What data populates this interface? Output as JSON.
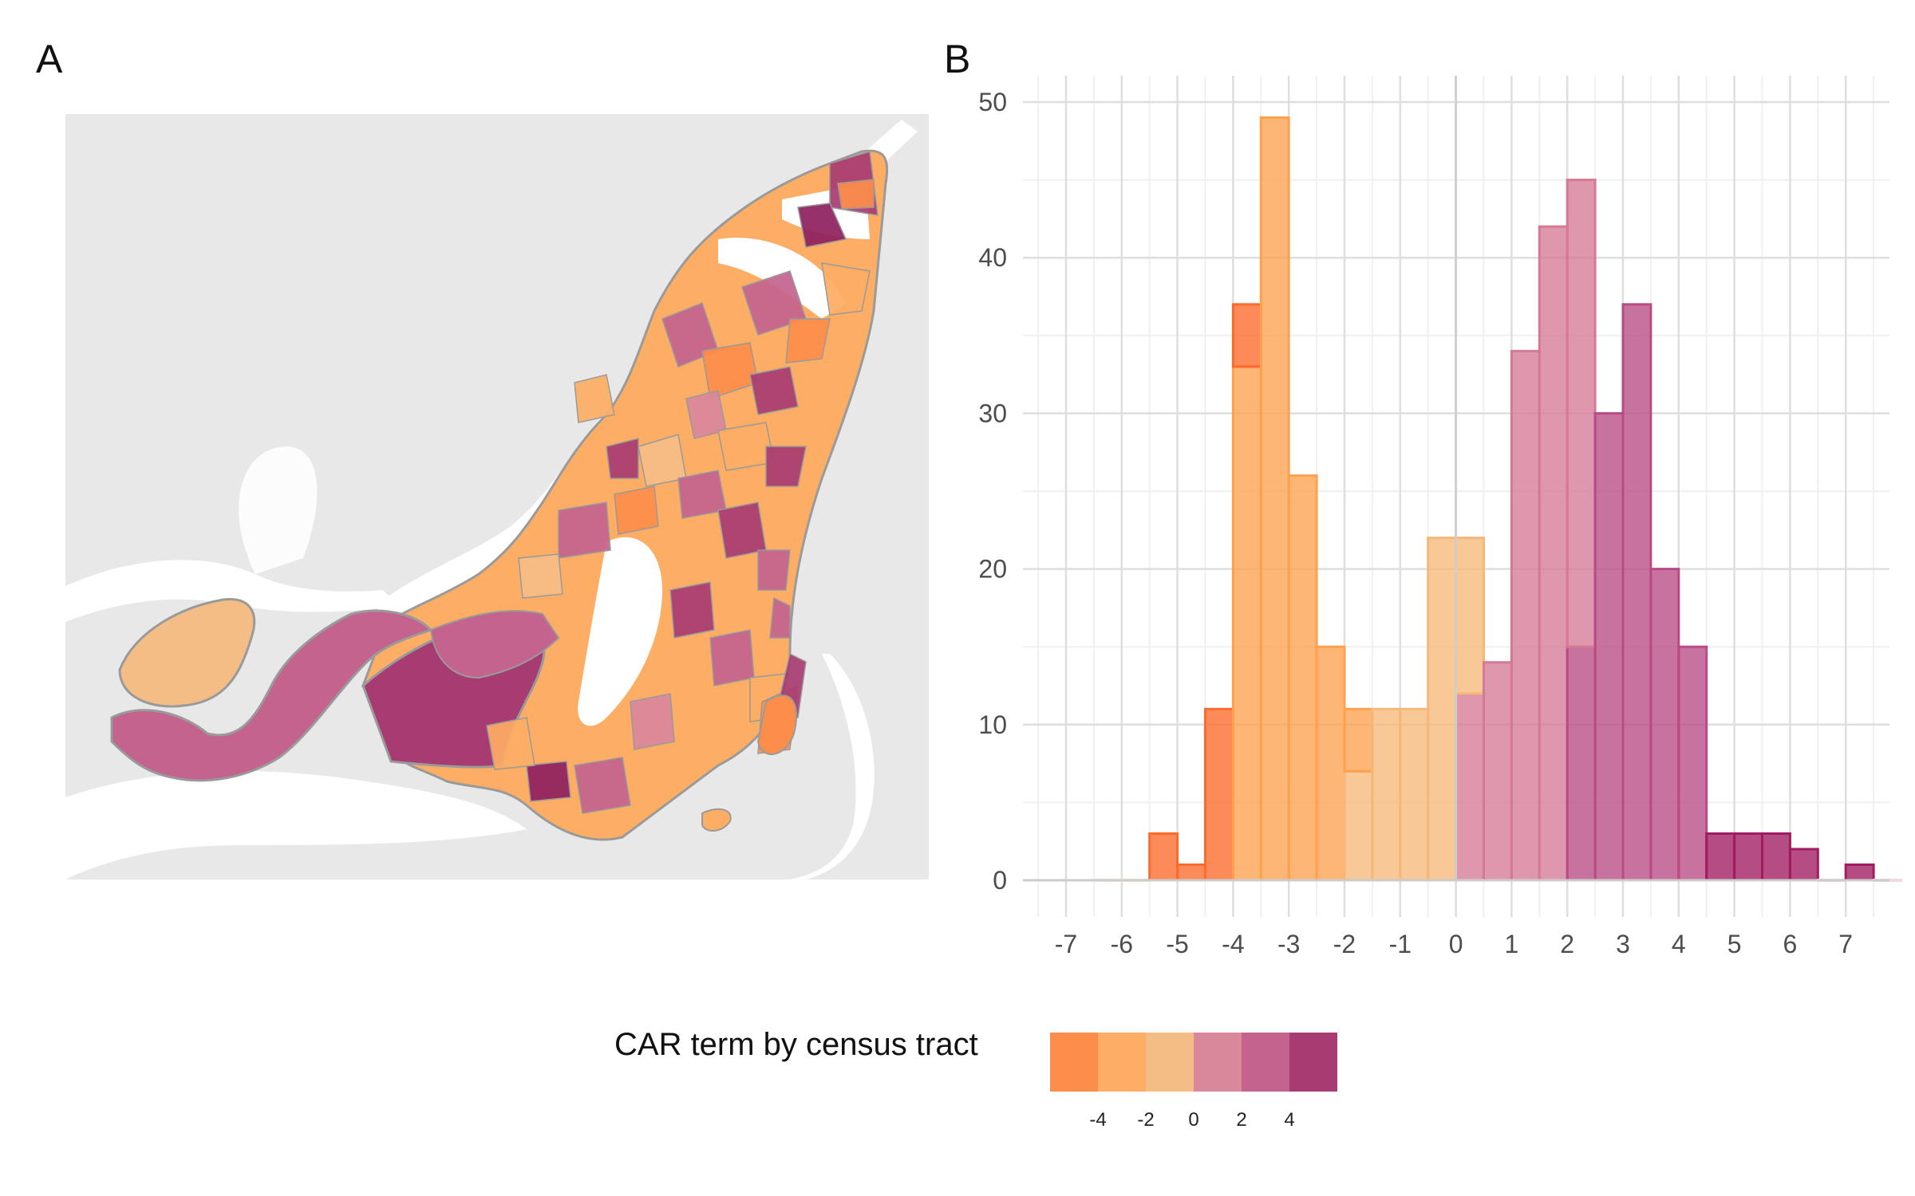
{
  "panels": {
    "a_label": "A",
    "b_label": "B"
  },
  "legend": {
    "title": "CAR term by census tract",
    "swatch_colors": [
      "#fd8d4a",
      "#fdad64",
      "#f5bd86",
      "#d9879b",
      "#c3638e",
      "#a73c72"
    ],
    "ticks": [
      "-4",
      "-2",
      "0",
      "2",
      "4"
    ]
  },
  "map": {
    "background": "#e8e8e8",
    "water": "#ffffff",
    "tract_palette": [
      "#fd8d4a",
      "#fdad64",
      "#f5bd86",
      "#d9879b",
      "#c3638e",
      "#a73c72",
      "#8e1f5f"
    ],
    "outline": "#9a9a9a"
  },
  "chart_data": {
    "type": "bar",
    "title": "",
    "xlabel": "",
    "ylabel": "",
    "xlim": [
      -7.5,
      7.5
    ],
    "ylim": [
      0,
      50
    ],
    "x_ticks": [
      -7,
      -6,
      -5,
      -4,
      -3,
      -2,
      -1,
      0,
      1,
      2,
      3,
      4,
      5,
      6,
      7
    ],
    "y_ticks": [
      0,
      10,
      20,
      30,
      40,
      50
    ],
    "bin_width": 0.5,
    "bins": [
      {
        "x": -6.25,
        "stack": [
          {
            "value": 0,
            "color": "#fee8d8"
          }
        ]
      },
      {
        "x": -5.75,
        "stack": [
          {
            "value": 0,
            "color": "#fee8d8"
          }
        ]
      },
      {
        "x": -5.25,
        "stack": [
          {
            "value": 3,
            "color": "#fc6a2c"
          }
        ]
      },
      {
        "x": -4.75,
        "stack": [
          {
            "value": 1,
            "color": "#fc6a2c"
          }
        ]
      },
      {
        "x": -4.25,
        "stack": [
          {
            "value": 11,
            "color": "#fc6a2c"
          }
        ]
      },
      {
        "x": -3.75,
        "stack": [
          {
            "value": 33,
            "color": "#fda14e"
          },
          {
            "value": 4,
            "color": "#fc6a2c"
          }
        ]
      },
      {
        "x": -3.25,
        "stack": [
          {
            "value": 49,
            "color": "#fda14e"
          }
        ]
      },
      {
        "x": -2.75,
        "stack": [
          {
            "value": 26,
            "color": "#fda14e"
          }
        ]
      },
      {
        "x": -2.25,
        "stack": [
          {
            "value": 15,
            "color": "#fda14e"
          }
        ]
      },
      {
        "x": -1.75,
        "stack": [
          {
            "value": 7,
            "color": "#f6b879"
          },
          {
            "value": 4,
            "color": "#fda14e"
          }
        ]
      },
      {
        "x": -1.25,
        "stack": [
          {
            "value": 11,
            "color": "#f6b879"
          }
        ]
      },
      {
        "x": -0.75,
        "stack": [
          {
            "value": 11,
            "color": "#f6b879"
          }
        ]
      },
      {
        "x": -0.25,
        "stack": [
          {
            "value": 22,
            "color": "#f6b879"
          }
        ]
      },
      {
        "x": 0.25,
        "stack": [
          {
            "value": 12,
            "color": "#d57a96"
          },
          {
            "value": 10,
            "color": "#f6b879"
          }
        ]
      },
      {
        "x": 0.75,
        "stack": [
          {
            "value": 14,
            "color": "#d57a96"
          }
        ]
      },
      {
        "x": 1.25,
        "stack": [
          {
            "value": 34,
            "color": "#d57a96"
          }
        ]
      },
      {
        "x": 1.75,
        "stack": [
          {
            "value": 42,
            "color": "#d57a96"
          }
        ]
      },
      {
        "x": 2.25,
        "stack": [
          {
            "value": 15,
            "color": "#b94b84"
          },
          {
            "value": 30,
            "color": "#d57a96"
          }
        ]
      },
      {
        "x": 2.75,
        "stack": [
          {
            "value": 30,
            "color": "#b94b84"
          }
        ]
      },
      {
        "x": 3.25,
        "stack": [
          {
            "value": 37,
            "color": "#b94b84"
          }
        ]
      },
      {
        "x": 3.75,
        "stack": [
          {
            "value": 20,
            "color": "#b94b84"
          }
        ]
      },
      {
        "x": 4.25,
        "stack": [
          {
            "value": 15,
            "color": "#b94b84"
          }
        ]
      },
      {
        "x": 4.75,
        "stack": [
          {
            "value": 3,
            "color": "#a01b62"
          }
        ]
      },
      {
        "x": 5.25,
        "stack": [
          {
            "value": 3,
            "color": "#a01b62"
          }
        ]
      },
      {
        "x": 5.75,
        "stack": [
          {
            "value": 3,
            "color": "#a01b62"
          }
        ]
      },
      {
        "x": 6.25,
        "stack": [
          {
            "value": 2,
            "color": "#a01b62"
          }
        ]
      },
      {
        "x": 6.75,
        "stack": [
          {
            "value": 0,
            "color": "#f3d7e3"
          }
        ]
      },
      {
        "x": 7.25,
        "stack": [
          {
            "value": 1,
            "color": "#a01b62"
          }
        ]
      },
      {
        "x": 7.75,
        "stack": [
          {
            "value": 0,
            "color": "#f3d7e3"
          }
        ]
      }
    ],
    "grid": true,
    "zero_line": 0
  }
}
